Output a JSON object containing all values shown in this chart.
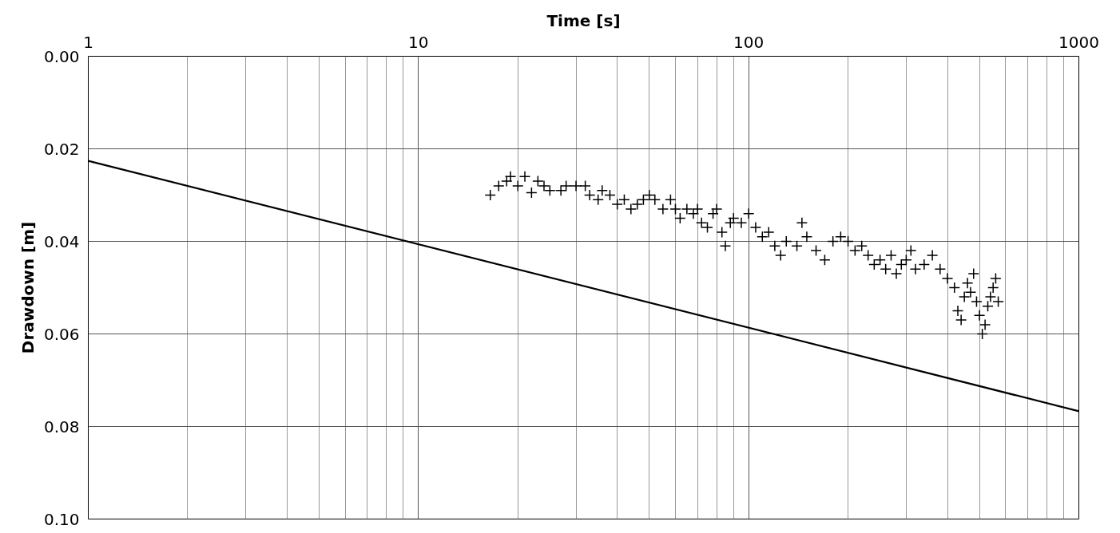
{
  "chart_data": {
    "type": "scatter",
    "xlabel": "Time [s]",
    "ylabel": "Drawdown [m]",
    "log": "x",
    "grid": true,
    "xlim": [
      1,
      1000
    ],
    "ylim": [
      0.1,
      0
    ],
    "xticks": [
      1,
      {
        "value": 2,
        "label": null
      },
      {
        "value": 3,
        "label": null
      },
      {
        "value": 4,
        "label": null
      },
      {
        "value": 5,
        "label": null
      },
      {
        "value": 6,
        "label": null
      },
      {
        "value": 7,
        "label": null
      },
      {
        "value": 8,
        "label": null
      },
      {
        "value": 9,
        "label": null
      },
      10,
      {
        "value": 20,
        "label": null
      },
      {
        "value": 30,
        "label": null
      },
      {
        "value": 40,
        "label": null
      },
      {
        "value": 50,
        "label": null
      },
      {
        "value": 60,
        "label": null
      },
      {
        "value": 70,
        "label": null
      },
      {
        "value": 80,
        "label": null
      },
      {
        "value": 90,
        "label": null
      },
      100,
      {
        "value": 200,
        "label": null
      },
      {
        "value": 300,
        "label": null
      },
      {
        "value": 400,
        "label": null
      },
      {
        "value": 500,
        "label": null
      },
      {
        "value": 600,
        "label": null
      },
      {
        "value": 700,
        "label": null
      },
      {
        "value": 800,
        "label": null
      },
      {
        "value": 900,
        "label": null
      },
      1000
    ],
    "yticks": [
      {
        "value": 0,
        "label": "0.00"
      },
      {
        "value": 0.02,
        "label": "0.02"
      },
      {
        "value": 0.04,
        "label": "0.04"
      },
      {
        "value": 0.06,
        "label": "0.06"
      },
      {
        "value": 0.08,
        "label": "0.08"
      },
      {
        "value": 0.1,
        "label": "0.10"
      }
    ],
    "series": [
      {
        "marker": "cross",
        "color": "#000000",
        "x": [
          16.5,
          17.5,
          18.5,
          19,
          20,
          21,
          22,
          23,
          24,
          25,
          27,
          28,
          30,
          32,
          33,
          35,
          36,
          38,
          40,
          42,
          44,
          46,
          48,
          50,
          52,
          55,
          58,
          60,
          62,
          65,
          68,
          70,
          72,
          75,
          78,
          80,
          83,
          85,
          88,
          90,
          95,
          100,
          105,
          110,
          115,
          120,
          125,
          130,
          140,
          145,
          150,
          160,
          170,
          180,
          190,
          200,
          210,
          220,
          230,
          240,
          250,
          260,
          270,
          280,
          290,
          300,
          310,
          320,
          340,
          360,
          380,
          400,
          420,
          430,
          440,
          450,
          460,
          470,
          480,
          490,
          500,
          510,
          520,
          530,
          540,
          550,
          560,
          570
        ],
        "values": [
          0.03,
          0.028,
          0.027,
          0.026,
          0.028,
          0.026,
          0.0295,
          0.027,
          0.028,
          0.029,
          0.029,
          0.028,
          0.028,
          0.028,
          0.03,
          0.031,
          0.029,
          0.03,
          0.032,
          0.031,
          0.033,
          0.032,
          0.031,
          0.03,
          0.031,
          0.033,
          0.031,
          0.033,
          0.035,
          0.033,
          0.034,
          0.033,
          0.036,
          0.037,
          0.034,
          0.033,
          0.038,
          0.041,
          0.036,
          0.035,
          0.036,
          0.034,
          0.037,
          0.039,
          0.038,
          0.041,
          0.043,
          0.04,
          0.041,
          0.036,
          0.039,
          0.042,
          0.044,
          0.04,
          0.039,
          0.04,
          0.042,
          0.041,
          0.043,
          0.045,
          0.044,
          0.046,
          0.043,
          0.047,
          0.045,
          0.044,
          0.042,
          0.046,
          0.045,
          0.043,
          0.046,
          0.048,
          0.05,
          0.055,
          0.057,
          0.052,
          0.049,
          0.051,
          0.047,
          0.053,
          0.056,
          0.06,
          0.058,
          0.054,
          0.052,
          0.05,
          0.048,
          0.053
        ]
      },
      {
        "type": "line",
        "color": "#000000",
        "x": [
          1,
          1000
        ],
        "values": [
          0.0226,
          0.0767
        ]
      }
    ]
  }
}
